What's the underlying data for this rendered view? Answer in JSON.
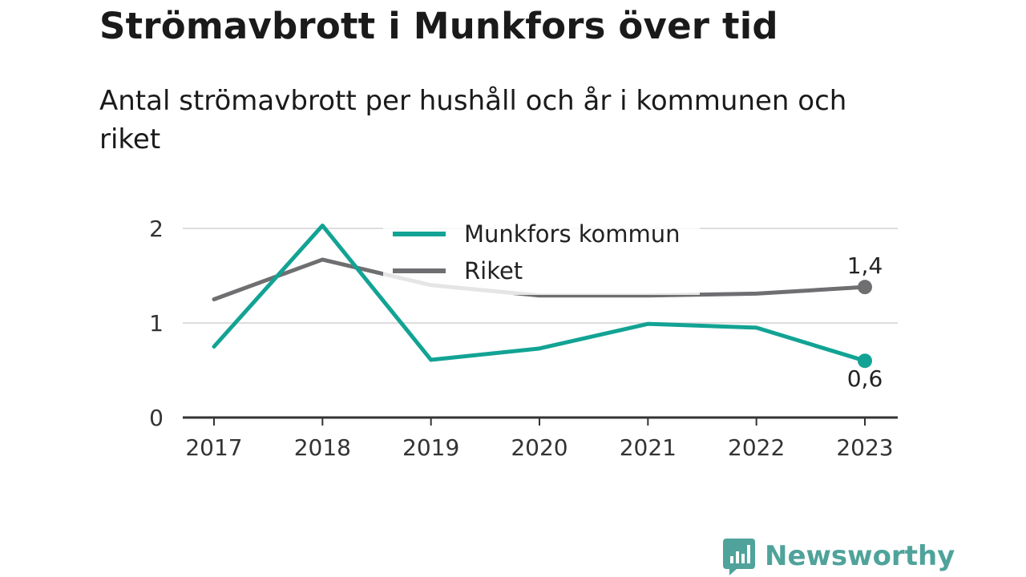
{
  "title": "Strömavbrott i Munkfors över tid",
  "subtitle": "Antal strömavbrott per hushåll och år i kommunen och riket",
  "brand": {
    "name": "Newsworthy",
    "color": "#4fa39a",
    "icon": "newsworthy-logo-icon"
  },
  "chart_data": {
    "type": "line",
    "x": [
      "2017",
      "2018",
      "2019",
      "2020",
      "2021",
      "2022",
      "2023"
    ],
    "series": [
      {
        "name": "Munkfors kommun",
        "color": "#12a394",
        "values": [
          0.75,
          2.03,
          0.61,
          0.73,
          0.99,
          0.95,
          0.6
        ],
        "end_label": "0,6"
      },
      {
        "name": "Riket",
        "color": "#6f6f72",
        "values": [
          1.25,
          1.67,
          1.4,
          1.29,
          1.29,
          1.31,
          1.38
        ],
        "end_label": "1,4"
      }
    ],
    "yticks": [
      "0",
      "1",
      "2"
    ],
    "ylim": [
      0,
      2
    ],
    "xlabel": "",
    "ylabel": "",
    "grid": true,
    "legend_position": "top-center"
  }
}
